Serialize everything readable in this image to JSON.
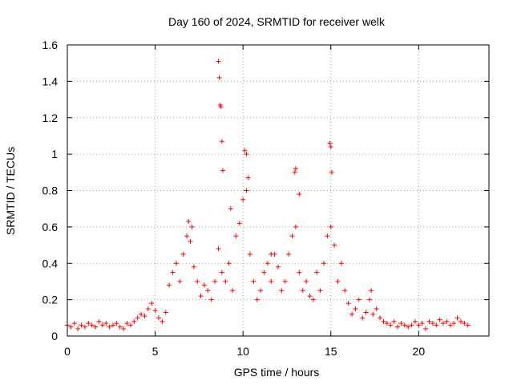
{
  "chart_data": {
    "type": "scatter",
    "title": "Day 160 of 2024, SRMTID for receiver welk",
    "xlabel": "GPS time / hours",
    "ylabel": "SRMTID / TECUs",
    "xlim": [
      0,
      24
    ],
    "ylim": [
      0,
      1.6
    ],
    "xticks": [
      0,
      5,
      10,
      15,
      20
    ],
    "xtick_labels": [
      "0",
      "5",
      "10",
      "15",
      "20"
    ],
    "yticks": [
      0,
      0.2,
      0.4,
      0.6,
      0.8,
      1.0,
      1.2,
      1.4,
      1.6
    ],
    "ytick_labels": [
      "0",
      "0.2",
      "0.4",
      "0.6",
      "0.8",
      "1",
      "1.2",
      "1.4",
      "1.6"
    ],
    "grid": true,
    "marker": "+",
    "color": "#ff0000",
    "series": [
      {
        "name": "SRMTID",
        "x": [
          0.0,
          0.2,
          0.4,
          0.6,
          0.8,
          1.0,
          1.2,
          1.4,
          1.6,
          1.8,
          2.0,
          2.2,
          2.4,
          2.6,
          2.8,
          3.0,
          3.2,
          3.4,
          3.6,
          3.8,
          4.0,
          4.2,
          4.4,
          4.6,
          4.8,
          5.0,
          5.2,
          5.4,
          5.6,
          5.8,
          6.0,
          6.2,
          6.4,
          6.6,
          6.8,
          7.0,
          7.2,
          7.4,
          7.6,
          7.8,
          8.0,
          8.2,
          8.4,
          8.6,
          8.8,
          9.0,
          9.2,
          9.4,
          9.6,
          9.8,
          10.0,
          10.2,
          10.4,
          10.6,
          10.8,
          11.0,
          11.2,
          11.4,
          11.6,
          11.8,
          12.0,
          12.2,
          12.4,
          12.6,
          12.8,
          13.0,
          13.2,
          13.4,
          13.6,
          13.8,
          14.0,
          14.2,
          14.4,
          14.6,
          14.8,
          15.0,
          15.2,
          15.4,
          15.6,
          15.8,
          16.0,
          16.2,
          16.4,
          16.6,
          16.8,
          17.0,
          17.2,
          17.4,
          17.6,
          17.8,
          18.0,
          18.2,
          18.4,
          18.6,
          18.8,
          19.0,
          19.2,
          19.4,
          19.6,
          19.8,
          20.0,
          20.2,
          20.4,
          20.6,
          20.8,
          21.0,
          21.2,
          21.4,
          21.6,
          21.8,
          22.0,
          22.2,
          22.4,
          22.6,
          22.8,
          8.6,
          8.65,
          8.7,
          8.75,
          8.8,
          8.85,
          10.1,
          10.2,
          10.3,
          12.95,
          13.2,
          14.95,
          15.0,
          15.05,
          13.0,
          6.9,
          7.1,
          9.3,
          11.6,
          17.3
        ],
        "y": [
          0.06,
          0.05,
          0.07,
          0.04,
          0.06,
          0.05,
          0.07,
          0.06,
          0.05,
          0.08,
          0.06,
          0.07,
          0.05,
          0.06,
          0.07,
          0.05,
          0.04,
          0.07,
          0.06,
          0.08,
          0.1,
          0.12,
          0.11,
          0.15,
          0.18,
          0.14,
          0.1,
          0.08,
          0.13,
          0.28,
          0.35,
          0.4,
          0.3,
          0.45,
          0.55,
          0.52,
          0.38,
          0.3,
          0.22,
          0.28,
          0.25,
          0.2,
          0.3,
          0.48,
          0.35,
          0.3,
          0.4,
          0.25,
          0.55,
          0.62,
          0.75,
          0.8,
          0.45,
          0.3,
          0.2,
          0.25,
          0.35,
          0.4,
          0.3,
          0.45,
          0.38,
          0.25,
          0.3,
          0.45,
          0.55,
          0.6,
          0.35,
          0.25,
          0.3,
          0.22,
          0.2,
          0.35,
          0.25,
          0.4,
          0.55,
          0.6,
          0.5,
          0.3,
          0.4,
          0.25,
          0.18,
          0.12,
          0.15,
          0.2,
          0.1,
          0.13,
          0.2,
          0.12,
          0.15,
          0.1,
          0.08,
          0.07,
          0.06,
          0.08,
          0.05,
          0.07,
          0.06,
          0.05,
          0.06,
          0.08,
          0.06,
          0.07,
          0.04,
          0.08,
          0.07,
          0.06,
          0.09,
          0.07,
          0.08,
          0.06,
          0.07,
          0.1,
          0.08,
          0.07,
          0.06,
          1.51,
          1.42,
          1.27,
          1.26,
          1.07,
          0.91,
          1.02,
          1.0,
          0.87,
          0.9,
          0.78,
          1.06,
          1.04,
          0.9,
          0.92,
          0.63,
          0.6,
          0.7,
          0.45,
          0.25
        ]
      }
    ]
  }
}
